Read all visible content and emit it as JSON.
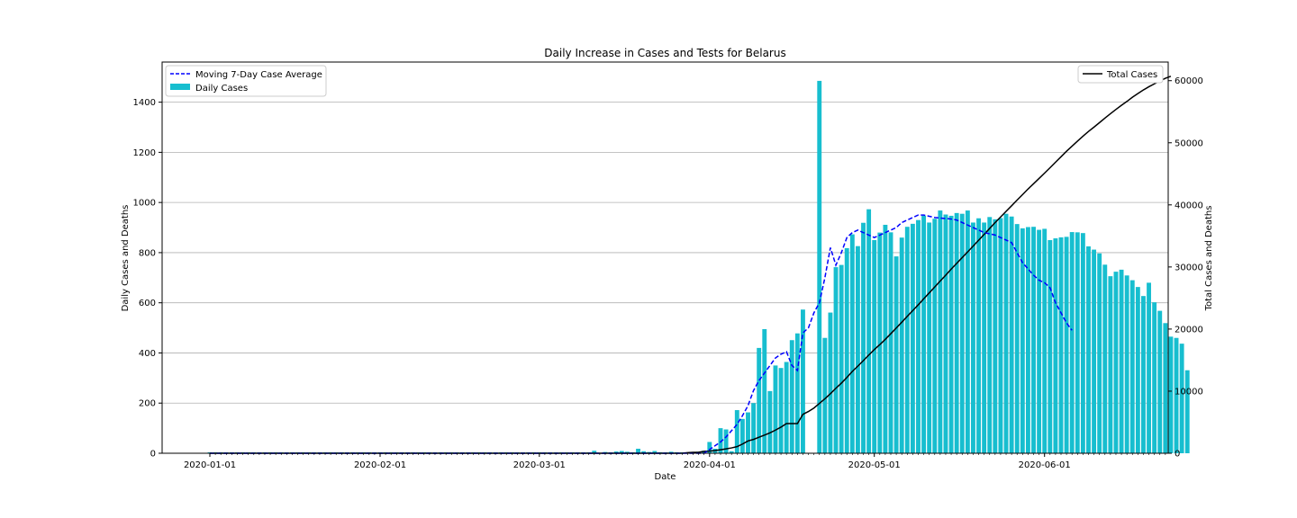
{
  "chart_data": {
    "type": "bar",
    "title": "Daily Increase in Cases and Tests for Belarus",
    "xlabel": "Date",
    "ylabel": "Daily Cases and Deaths",
    "y2label": "Total Cases and Deaths",
    "start_date": "2020-01-01",
    "ylim": [
      0,
      1560
    ],
    "y2lim": [
      0,
      63000
    ],
    "yticks": [
      0,
      200,
      400,
      600,
      800,
      1000,
      1200,
      1400
    ],
    "y2ticks": [
      0,
      10000,
      20000,
      30000,
      40000,
      50000,
      60000
    ],
    "xticks": [
      "2020-01-01",
      "2020-02-01",
      "2020-03-01",
      "2020-04-01",
      "2020-05-01",
      "2020-06-01"
    ],
    "grid": "y",
    "legend_left": [
      {
        "label": "Moving 7-Day Case Average",
        "style": "dashed-line"
      },
      {
        "label": "Daily Cases",
        "style": "bar"
      }
    ],
    "legend_right": [
      {
        "label": "Total Cases",
        "style": "line"
      }
    ],
    "colors": {
      "bars": "#17becf",
      "average": "#0000ff",
      "total": "#000000"
    },
    "daily_cases": [
      0,
      0,
      0,
      0,
      0,
      0,
      0,
      0,
      0,
      0,
      0,
      0,
      0,
      0,
      0,
      0,
      0,
      0,
      0,
      0,
      0,
      0,
      0,
      0,
      0,
      0,
      0,
      0,
      0,
      0,
      0,
      0,
      0,
      0,
      0,
      0,
      0,
      0,
      0,
      0,
      0,
      0,
      0,
      0,
      0,
      0,
      0,
      0,
      0,
      0,
      0,
      0,
      0,
      0,
      0,
      0,
      0,
      0,
      0,
      0,
      0,
      0,
      0,
      0,
      0,
      0,
      0,
      0,
      0,
      0,
      0,
      0,
      0,
      0,
      0,
      0,
      0,
      0,
      0,
      0,
      0,
      0,
      0,
      0,
      0,
      0,
      0,
      0,
      0,
      0,
      0,
      0,
      0,
      0,
      0,
      0,
      0,
      0,
      0,
      0,
      0,
      0,
      0,
      0,
      0,
      0,
      0,
      0,
      0,
      0,
      0,
      0,
      0,
      0,
      0,
      0,
      0,
      0,
      0,
      0,
      0,
      0,
      0,
      0,
      0,
      0,
      0,
      0,
      0,
      0,
      0,
      0,
      0,
      0,
      0,
      0,
      0,
      0,
      0,
      0,
      0,
      0,
      0,
      0,
      0,
      0,
      0,
      0,
      0,
      0,
      0,
      0,
      0,
      0,
      0,
      0,
      0,
      0,
      0,
      0,
      0,
      0,
      0,
      0,
      0,
      0,
      0,
      0,
      0,
      0,
      0,
      0,
      0,
      0,
      0,
      0,
      0,
      0
    ],
    "daily_cases_nonzero": {
      "first_date": "2020-03-11",
      "values": [
        10,
        0,
        5,
        3,
        7,
        9,
        6,
        3,
        18,
        8,
        5,
        9,
        4,
        3,
        6,
        4,
        2,
        1,
        3,
        6,
        10,
        45,
        18,
        100,
        95,
        8,
        172,
        137,
        163,
        200,
        420,
        495,
        248,
        350,
        340,
        364,
        451,
        478,
        573,
        0,
        0,
        1485,
        460,
        561,
        742,
        751,
        818,
        873,
        826,
        919,
        973,
        850,
        880,
        911,
        881,
        785,
        860,
        903,
        915,
        930,
        947,
        920,
        935,
        968,
        952,
        947,
        958,
        955,
        968,
        920,
        937,
        920,
        942,
        933,
        938,
        955,
        944,
        914,
        897,
        902,
        903,
        891,
        895,
        850,
        857,
        861,
        863,
        882,
        881,
        878,
        825,
        812,
        797,
        752,
        706,
        724,
        732,
        709,
        690,
        663,
        627,
        680,
        602,
        568,
        519,
        465,
        460,
        437,
        331
      ]
    },
    "moving_average": {
      "first_date": "2020-04-01",
      "values": [
        15,
        30,
        45,
        65,
        90,
        115,
        150,
        190,
        250,
        290,
        320,
        350,
        380,
        395,
        405,
        350,
        330,
        480,
        500,
        560,
        600,
        700,
        820,
        750,
        800,
        860,
        880,
        890,
        880,
        870,
        860,
        870,
        880,
        890,
        900,
        920,
        930,
        940,
        950,
        950,
        945,
        940,
        938,
        936,
        934,
        930,
        920,
        910,
        900,
        890,
        880,
        875,
        870,
        860,
        850,
        840,
        800,
        760,
        735,
        710,
        690,
        680,
        660,
        600,
        560,
        520,
        490
      ]
    },
    "total_cases": {
      "first_date": "2020-03-28",
      "values": [
        94,
        152,
        163,
        304,
        351,
        440,
        562,
        700,
        861,
        1066,
        1486,
        1981,
        2226,
        2578,
        2919,
        3281,
        3728,
        4204,
        4779,
        4779,
        4779,
        6264,
        6723,
        7281,
        8022,
        8773,
        9590,
        10463,
        11289,
        12208,
        13181,
        14027,
        14917,
        15828,
        16705,
        17489,
        18350,
        19255,
        20168,
        21101,
        22052,
        22973,
        23906,
        24873,
        25825,
        26772,
        27730,
        28681,
        29650,
        30572,
        31508,
        32426,
        33371,
        34303,
        35244,
        36198,
        37144,
        38059,
        38956,
        39858,
        40764,
        41658,
        42556,
        43403,
        44255,
        45116,
        45981,
        46868,
        47751,
        48630,
        49453,
        50265,
        51066,
        51816,
        52520,
        53241,
        53973,
        54680,
        55369,
        56032,
        56657,
        57333,
        57936,
        58505,
        59023,
        59487,
        59945,
        60382,
        60713
      ]
    }
  }
}
